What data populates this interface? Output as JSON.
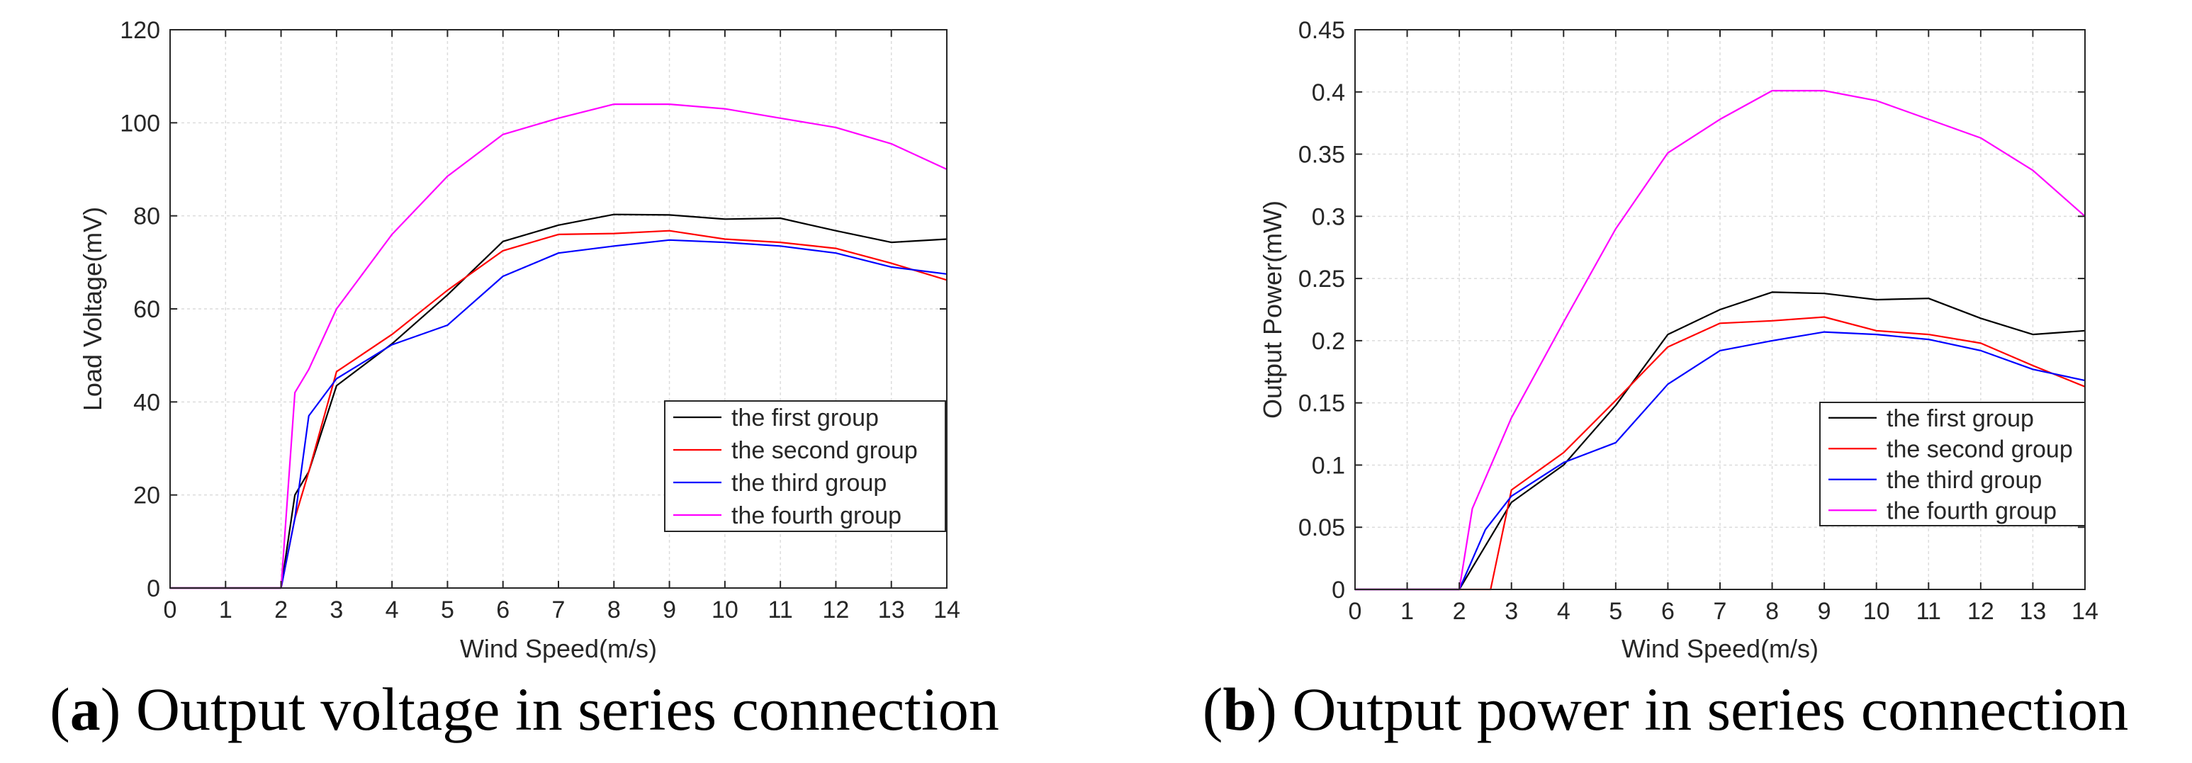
{
  "chart_data": [
    {
      "type": "line",
      "panel_label": "a",
      "caption": "Output voltage in series connection",
      "xlabel": "Wind Speed(m/s)",
      "ylabel": "Load Voltage(mV)",
      "xlim": [
        0,
        14
      ],
      "ylim": [
        0,
        120
      ],
      "xticks": [
        "0",
        "1",
        "2",
        "3",
        "4",
        "5",
        "6",
        "7",
        "8",
        "9",
        "10",
        "11",
        "12",
        "13",
        "14"
      ],
      "yticks": [
        "0",
        "20",
        "40",
        "60",
        "80",
        "100",
        "120"
      ],
      "grid": true,
      "legend_position": "bottom-right",
      "x": [
        0,
        1,
        2,
        2.25,
        2.5,
        3,
        4,
        5,
        6,
        7,
        8,
        9,
        10,
        11,
        12,
        13,
        14
      ],
      "series": [
        {
          "name": "the first group",
          "color": "#000000",
          "values": [
            0,
            0,
            0,
            20,
            25,
            43.5,
            52.5,
            63,
            74.5,
            78,
            80.3,
            80.2,
            79.3,
            79.5,
            76.8,
            74.3,
            75
          ]
        },
        {
          "name": "the second group",
          "color": "#ff0000",
          "values": [
            0,
            0,
            0,
            15,
            25,
            46.5,
            54.5,
            64,
            72.5,
            76,
            76.2,
            76.8,
            75,
            74.3,
            73,
            69.8,
            66.2
          ]
        },
        {
          "name": "the third group",
          "color": "#0000ff",
          "values": [
            0,
            0,
            0,
            15,
            37,
            45,
            52.3,
            56.5,
            67,
            72,
            73.5,
            74.8,
            74.3,
            73.5,
            72,
            69,
            67.5
          ]
        },
        {
          "name": "the fourth group",
          "color": "#ff00ff",
          "values": [
            0,
            0,
            0,
            42,
            47,
            60,
            76,
            88.5,
            97.5,
            101,
            104,
            104,
            103,
            101,
            99,
            95.5,
            90
          ]
        }
      ]
    },
    {
      "type": "line",
      "panel_label": "b",
      "caption": "Output power in series connection",
      "xlabel": "Wind Speed(m/s)",
      "ylabel": "Output Power(mW)",
      "xlim": [
        0,
        14
      ],
      "ylim": [
        0,
        0.45
      ],
      "xticks": [
        "0",
        "1",
        "2",
        "3",
        "4",
        "5",
        "6",
        "7",
        "8",
        "9",
        "10",
        "11",
        "12",
        "13",
        "14"
      ],
      "yticks": [
        "0",
        "0.05",
        "0.1",
        "0.15",
        "0.2",
        "0.25",
        "0.3",
        "0.35",
        "0.4",
        "0.45"
      ],
      "grid": true,
      "legend_position": "bottom-right",
      "series": [
        {
          "name": "the first group",
          "color": "#000000",
          "x": [
            0,
            1,
            2,
            2.5,
            3,
            4,
            5,
            6,
            7,
            8,
            9,
            10,
            11,
            12,
            13,
            14
          ],
          "values": [
            0,
            0,
            0,
            0.035,
            0.07,
            0.1,
            0.148,
            0.205,
            0.225,
            0.239,
            0.238,
            0.233,
            0.234,
            0.218,
            0.205,
            0.208
          ]
        },
        {
          "name": "the second group",
          "color": "#ff0000",
          "x": [
            0,
            1,
            2,
            2.6,
            3,
            4,
            5,
            6,
            7,
            8,
            9,
            10,
            11,
            12,
            13,
            14
          ],
          "values": [
            0,
            0,
            0,
            0,
            0.08,
            0.11,
            0.152,
            0.195,
            0.214,
            0.216,
            0.219,
            0.208,
            0.205,
            0.198,
            0.18,
            0.163
          ]
        },
        {
          "name": "the third group",
          "color": "#0000ff",
          "x": [
            0,
            1,
            2,
            2.5,
            3,
            4,
            5,
            6,
            7,
            8,
            9,
            10,
            11,
            12,
            13,
            14
          ],
          "values": [
            0,
            0,
            0,
            0.048,
            0.075,
            0.102,
            0.118,
            0.165,
            0.192,
            0.2,
            0.207,
            0.205,
            0.201,
            0.192,
            0.177,
            0.168
          ]
        },
        {
          "name": "the fourth group",
          "color": "#ff00ff",
          "x": [
            0,
            1,
            2,
            2.25,
            3,
            4,
            5,
            6,
            7,
            8,
            9,
            10,
            11,
            12,
            13,
            14
          ],
          "values": [
            0,
            0,
            0,
            0.065,
            0.138,
            0.215,
            0.29,
            0.351,
            0.378,
            0.401,
            0.401,
            0.393,
            0.378,
            0.363,
            0.337,
            0.3
          ]
        }
      ]
    }
  ]
}
